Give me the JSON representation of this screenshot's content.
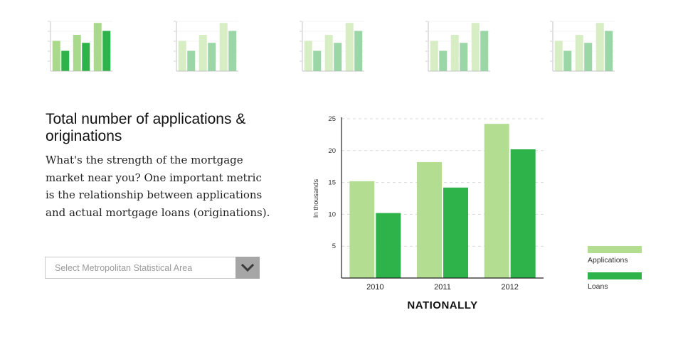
{
  "title": "Total number of applications & originations",
  "description": "What's the strength of the mortgage market near you? One important metric is the relationship between applications and actual mortgage loans (originations).",
  "select": {
    "placeholder": "Select Metropolitan Statistical Area",
    "icon": "chevron-down-icon"
  },
  "chart_heading": "NATIONALLY",
  "colors": {
    "applications": "#b3de91",
    "loans": "#2db34a",
    "thumb_active_applications": "#a9d98a",
    "thumb_active_loans": "#2db34a",
    "thumb_faded_applications": "#d7eec5",
    "thumb_faded_loans": "#9ad6a6"
  },
  "thumbnails": [
    {
      "active": true
    },
    {
      "active": false
    },
    {
      "active": false
    },
    {
      "active": false
    },
    {
      "active": false
    }
  ],
  "chart_data": {
    "type": "bar",
    "categories": [
      "2010",
      "2011",
      "2012"
    ],
    "series": [
      {
        "name": "Applications",
        "values": [
          15.2,
          18.2,
          24.2
        ]
      },
      {
        "name": "Loans",
        "values": [
          10.2,
          14.2,
          20.2
        ]
      }
    ],
    "title": "NATIONALLY",
    "xlabel": "",
    "ylabel": "In thousands",
    "ylim": [
      0,
      25
    ],
    "yticks": [
      5,
      10,
      15,
      20,
      25
    ],
    "grid": true,
    "legend": "bottom-right"
  }
}
